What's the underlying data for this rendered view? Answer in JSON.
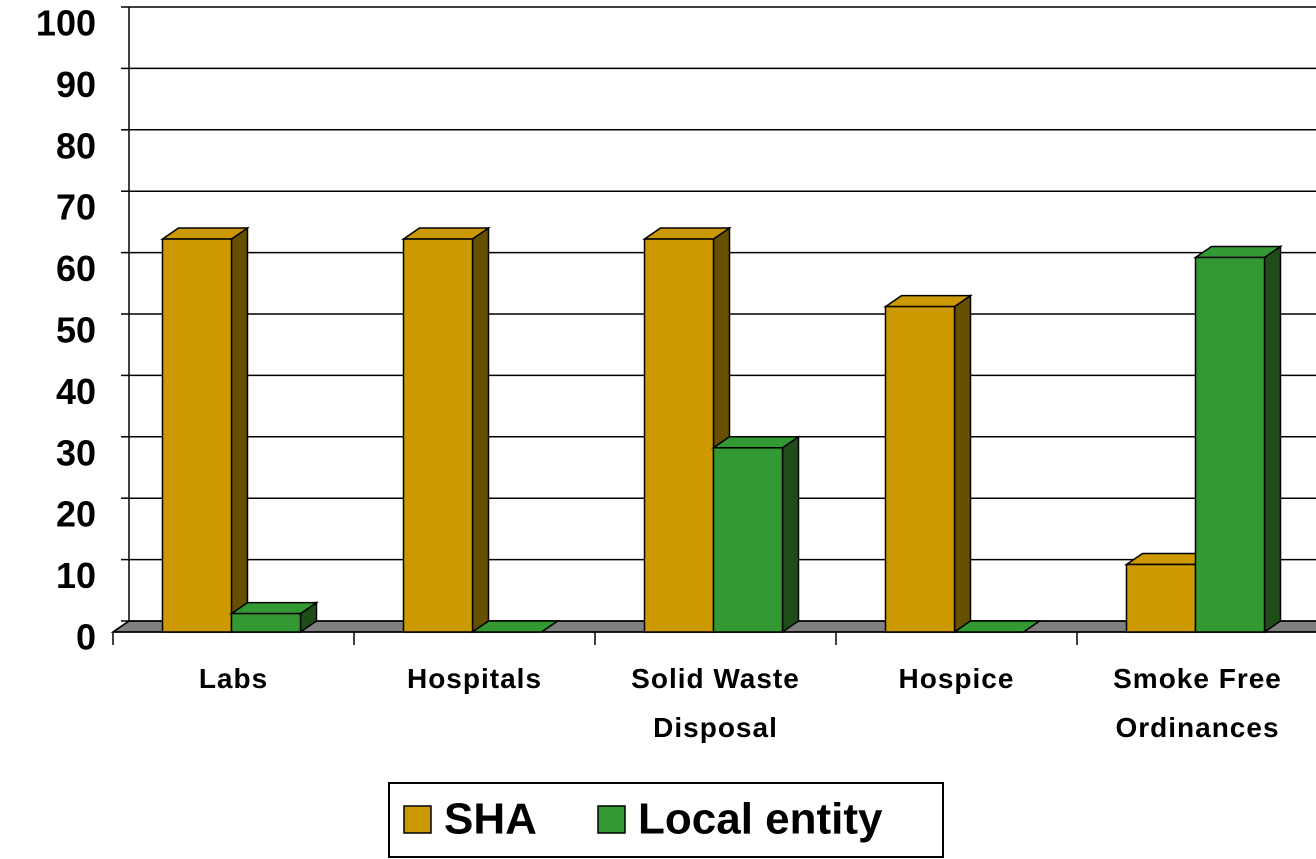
{
  "chart_data": {
    "type": "bar3d",
    "categories": [
      "Labs",
      "Hospitals",
      "Solid Waste Disposal",
      "Hospice",
      "Smoke Free Ordinances"
    ],
    "series": [
      {
        "name": "SHA",
        "color": "#cc9900",
        "side_color": "#665000",
        "values": [
          64,
          64,
          64,
          53,
          11
        ]
      },
      {
        "name": "Local entity",
        "color": "#339933",
        "side_color": "#1f4d1a",
        "values": [
          3,
          0,
          30,
          0,
          61
        ]
      }
    ],
    "ylim": [
      0,
      100
    ],
    "yticks": [
      0,
      10,
      20,
      30,
      40,
      50,
      60,
      70,
      80,
      90,
      100
    ],
    "grid": true
  }
}
